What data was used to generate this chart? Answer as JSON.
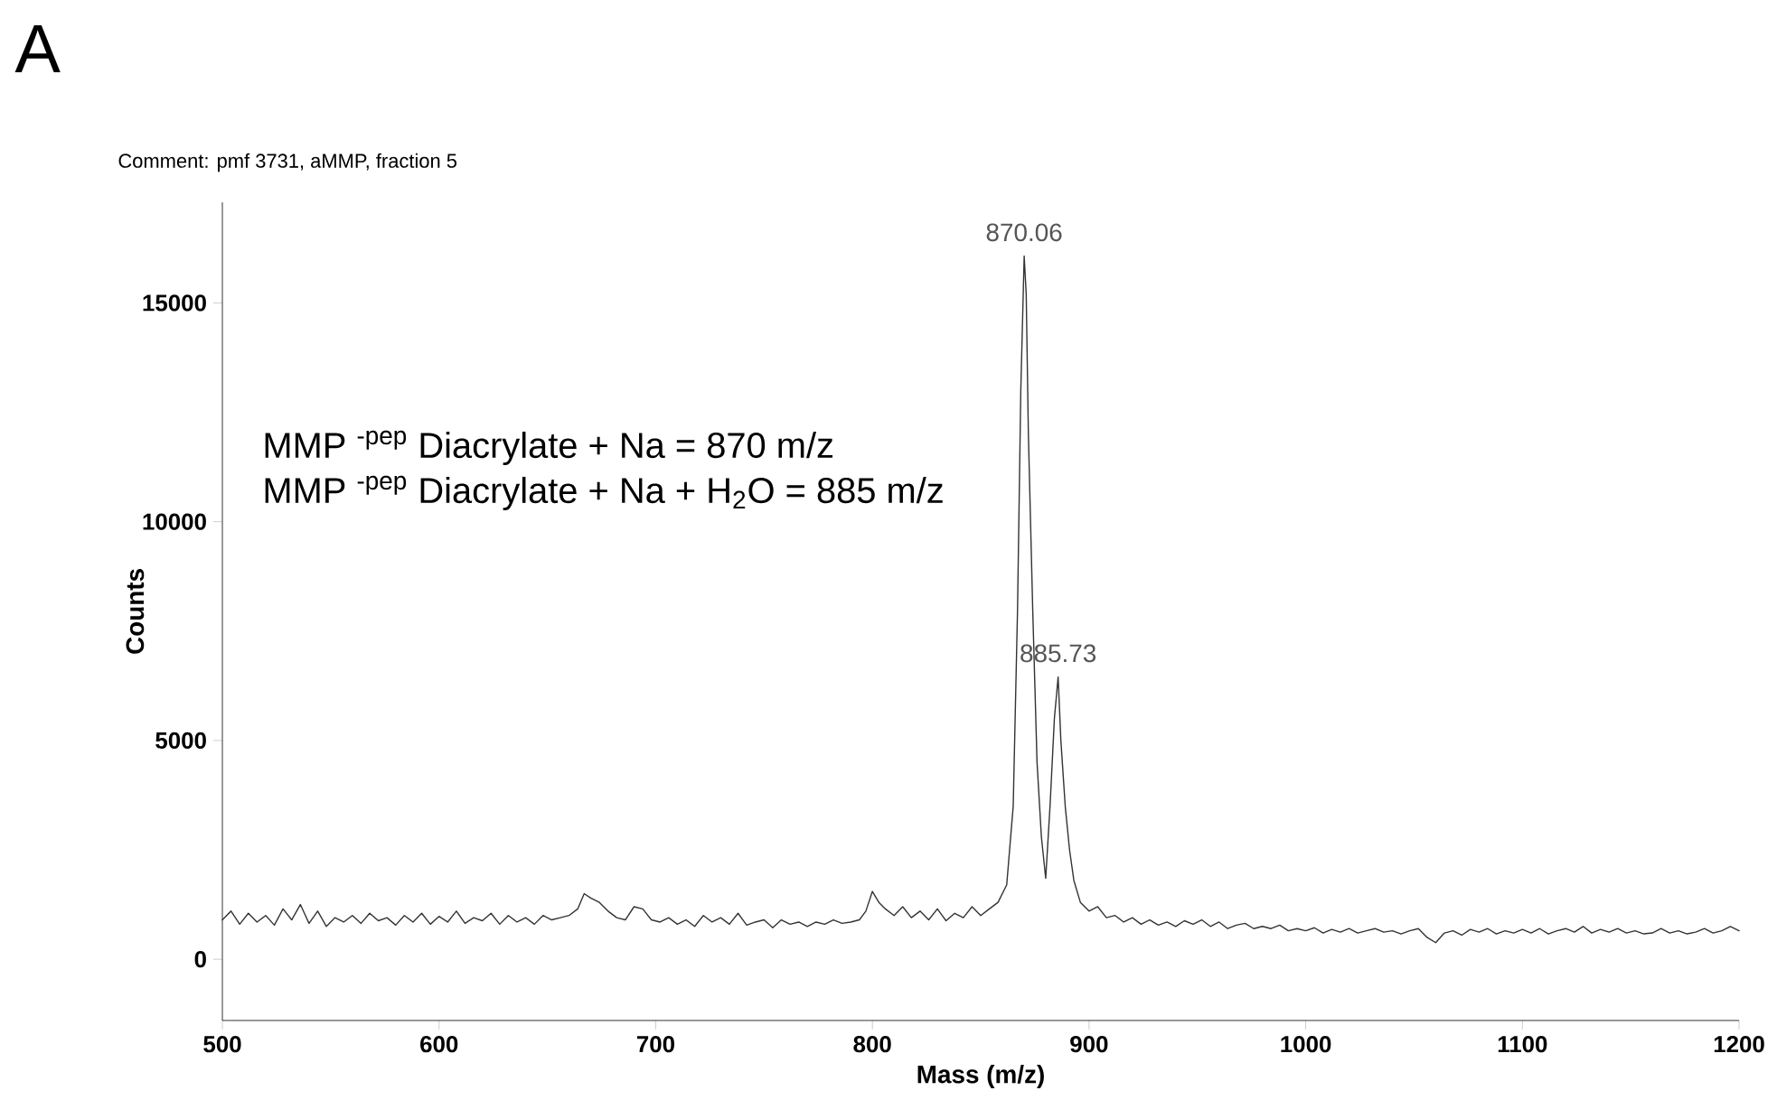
{
  "chart_data": {
    "type": "line",
    "xlabel": "Mass (m/z)",
    "ylabel": "Counts",
    "color": "#333333",
    "grid": false,
    "marker": "none",
    "line_style": "solid",
    "xlim": [
      500,
      1200
    ],
    "ylim": [
      -1400,
      17300
    ],
    "xticks": [
      500,
      600,
      700,
      800,
      900,
      1000,
      1100,
      1200
    ],
    "yticks": [
      0,
      5000,
      10000,
      15000
    ],
    "x": [
      500,
      504,
      508,
      512,
      516,
      520,
      524,
      528,
      532,
      536,
      540,
      544,
      548,
      552,
      556,
      560,
      564,
      568,
      572,
      576,
      580,
      584,
      588,
      592,
      596,
      600,
      604,
      608,
      612,
      616,
      620,
      624,
      628,
      632,
      636,
      640,
      644,
      648,
      652,
      656,
      660,
      664,
      667,
      670,
      674,
      678,
      682,
      686,
      690,
      694,
      698,
      702,
      706,
      710,
      714,
      718,
      722,
      726,
      730,
      734,
      738,
      742,
      746,
      750,
      754,
      758,
      762,
      766,
      770,
      774,
      778,
      782,
      786,
      790,
      794,
      797,
      800,
      803,
      806,
      810,
      814,
      818,
      822,
      826,
      830,
      834,
      838,
      842,
      846,
      850,
      854,
      858,
      862,
      865,
      867,
      868.5,
      870.06,
      871,
      872,
      874,
      876,
      878,
      880,
      882,
      884,
      885.73,
      887,
      889,
      891,
      893,
      896,
      900,
      904,
      908,
      912,
      916,
      920,
      924,
      928,
      932,
      936,
      940,
      944,
      948,
      952,
      956,
      960,
      964,
      968,
      972,
      976,
      980,
      984,
      988,
      992,
      996,
      1000,
      1004,
      1008,
      1012,
      1016,
      1020,
      1024,
      1028,
      1032,
      1036,
      1040,
      1044,
      1048,
      1052,
      1056,
      1060,
      1064,
      1068,
      1072,
      1076,
      1080,
      1084,
      1088,
      1092,
      1096,
      1100,
      1104,
      1108,
      1112,
      1116,
      1120,
      1124,
      1128,
      1132,
      1136,
      1140,
      1144,
      1148,
      1152,
      1156,
      1160,
      1164,
      1168,
      1172,
      1176,
      1180,
      1184,
      1188,
      1192,
      1196,
      1200
    ],
    "values": [
      900,
      1100,
      800,
      1050,
      850,
      1000,
      780,
      1150,
      900,
      1250,
      820,
      1100,
      750,
      950,
      850,
      1000,
      820,
      1050,
      880,
      950,
      780,
      1000,
      850,
      1050,
      800,
      980,
      850,
      1100,
      820,
      950,
      880,
      1050,
      800,
      1000,
      850,
      950,
      800,
      1000,
      900,
      950,
      1000,
      1150,
      1500,
      1400,
      1300,
      1100,
      950,
      900,
      1200,
      1150,
      900,
      850,
      950,
      800,
      900,
      750,
      1000,
      850,
      950,
      800,
      1050,
      780,
      850,
      900,
      720,
      900,
      800,
      850,
      750,
      850,
      800,
      900,
      820,
      850,
      900,
      1100,
      1550,
      1300,
      1150,
      1000,
      1200,
      950,
      1100,
      900,
      1150,
      880,
      1050,
      950,
      1200,
      1000,
      1150,
      1300,
      1700,
      3500,
      8000,
      13000,
      16070,
      15200,
      12000,
      8000,
      4500,
      2800,
      1850,
      3500,
      5500,
      6450,
      5000,
      3500,
      2500,
      1800,
      1300,
      1100,
      1200,
      950,
      1000,
      850,
      950,
      800,
      900,
      780,
      850,
      750,
      880,
      800,
      900,
      750,
      850,
      700,
      780,
      820,
      700,
      750,
      700,
      780,
      650,
      700,
      650,
      720,
      600,
      680,
      620,
      700,
      600,
      650,
      700,
      620,
      650,
      580,
      650,
      700,
      500,
      380,
      600,
      650,
      550,
      680,
      620,
      700,
      580,
      650,
      600,
      680,
      600,
      700,
      580,
      650,
      700,
      620,
      750,
      600,
      680,
      620,
      700,
      600,
      650,
      580,
      600,
      700,
      600,
      650,
      580,
      620,
      700,
      600,
      650,
      750,
      650
    ],
    "annotations": [
      "A",
      "Comment: pmf 3731, aMMP, fraction 5",
      "MMP $^{-pep}$ Diacrylate + Na = 870 m/z",
      "MMP $^{-pep}$ Diacrylate + Na + H$_{2}$O = 885 m/z",
      {
        "text": "870.06",
        "x": 870.06,
        "y": 16070
      },
      {
        "text": "885.73",
        "x": 885.73,
        "y": 6450
      }
    ]
  }
}
